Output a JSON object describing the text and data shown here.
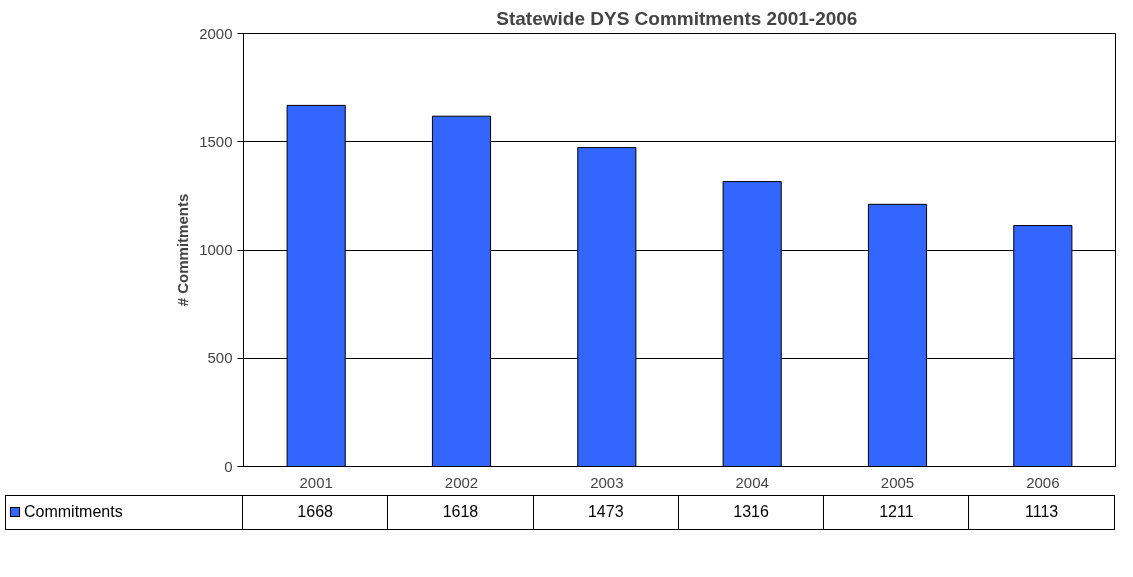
{
  "chart_data": {
    "type": "bar",
    "title": "Statewide DYS Commitments  2001-2006",
    "ylabel": "# Commitments",
    "categories": [
      "2001",
      "2002",
      "2003",
      "2004",
      "2005",
      "2006"
    ],
    "series": [
      {
        "name": "Commitments",
        "color": "#3366ff",
        "values": [
          1668,
          1618,
          1473,
          1316,
          1211,
          1113
        ]
      }
    ],
    "ylim": [
      0,
      2000
    ],
    "yticks": [
      0,
      500,
      1000,
      1500,
      2000
    ],
    "grid": "y",
    "data_labels": true,
    "legend": "bottom"
  }
}
